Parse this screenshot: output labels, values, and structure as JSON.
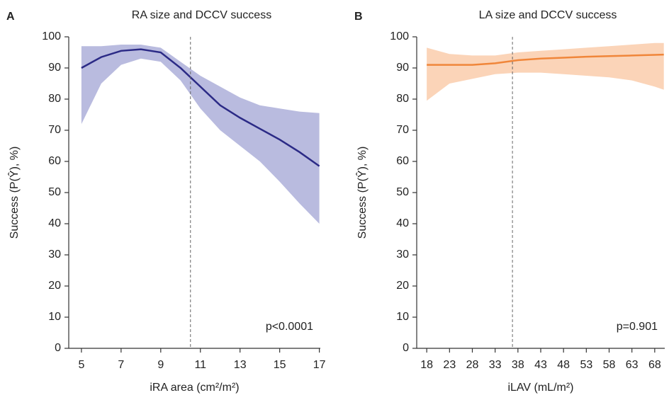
{
  "chart_data": [
    {
      "type": "line",
      "panel": "A",
      "title": "RA size and DCCV success",
      "x_label": "iRA area (cm²/m²)",
      "y_label": "Success (P(Ŷ), %)",
      "annotation": "p<0.0001",
      "x": [
        5,
        6,
        7,
        8,
        8.5,
        9,
        10,
        11,
        12,
        13,
        14,
        15,
        16,
        17
      ],
      "values": [
        90,
        93.5,
        95.5,
        96,
        95.5,
        95,
        90,
        84,
        78,
        74,
        70.5,
        67,
        63,
        58.5
      ],
      "lower": [
        72,
        85,
        91,
        93,
        92.5,
        92,
        86,
        77,
        70,
        65,
        60,
        53.5,
        46.5,
        40
      ],
      "upper": [
        97,
        97,
        97.5,
        97.5,
        97,
        96.5,
        92,
        87.5,
        84,
        80.5,
        78,
        77,
        76,
        75.5
      ],
      "color": "#2b2a86",
      "band_color": "#b9bbdf",
      "vline": 10.5,
      "xlim": [
        4.36,
        17.05
      ],
      "xticks": [
        5,
        7,
        9,
        11,
        13,
        15,
        17
      ],
      "ylim": [
        0,
        100
      ],
      "yticks": [
        0,
        10,
        20,
        30,
        40,
        50,
        60,
        70,
        80,
        90,
        100
      ]
    },
    {
      "type": "line",
      "panel": "B",
      "title": "LA size and DCCV success",
      "x_label": "iLAV (mL/m²)",
      "y_label": "Success (P(Ŷ), %)",
      "annotation": "p=0.901",
      "x": [
        18,
        23,
        28,
        33,
        38,
        43,
        48,
        53,
        58,
        63,
        68,
        70
      ],
      "values": [
        91,
        91,
        91,
        91.5,
        92.5,
        93,
        93.3,
        93.6,
        93.8,
        94,
        94.2,
        94.3
      ],
      "lower": [
        79.5,
        85,
        86.5,
        88,
        88.5,
        88.5,
        88,
        87.5,
        87,
        86,
        84,
        83
      ],
      "upper": [
        96.5,
        94.5,
        94,
        94,
        95,
        95.5,
        96,
        96.5,
        97,
        97.5,
        98,
        98
      ],
      "color": "#f0863a",
      "band_color": "#fbd4b8",
      "vline": 36.8,
      "xlim": [
        15.8,
        70.2
      ],
      "xticks": [
        18,
        23,
        28,
        33,
        38,
        43,
        48,
        53,
        58,
        63,
        68
      ],
      "ylim": [
        0,
        100
      ],
      "yticks": [
        0,
        10,
        20,
        30,
        40,
        50,
        60,
        70,
        80,
        90,
        100
      ]
    }
  ]
}
